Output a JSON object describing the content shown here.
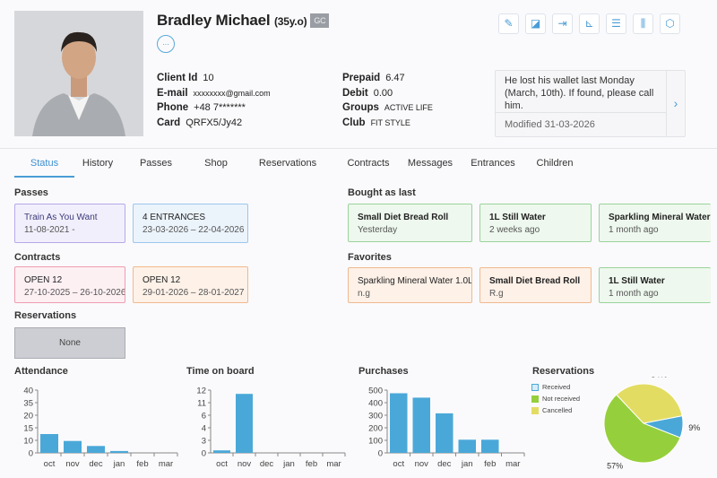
{
  "client": {
    "name": "Bradley Michael",
    "age": "(35y.o)",
    "badge": "GC",
    "more": "...",
    "fields_left": [
      {
        "label": "Client Id",
        "value": "10"
      },
      {
        "label": "E-mail",
        "value": "xxxxxxxx@gmail.com"
      },
      {
        "label": "Phone",
        "value": "+48 7*******"
      },
      {
        "label": "Card",
        "value": "QRFX5/Jy42"
      }
    ],
    "fields_right": [
      {
        "label": "Prepaid",
        "value": "6.47"
      },
      {
        "label": "Debit",
        "value": "0.00"
      },
      {
        "label": "Groups",
        "value": "ACTIVE LIFE"
      },
      {
        "label": "Club",
        "value": "FIT STYLE"
      }
    ]
  },
  "toolbar": [
    "edit-icon",
    "card-icon",
    "login-icon",
    "cart-icon",
    "receipt-icon",
    "dumbbell-icon",
    "settings-icon"
  ],
  "note": {
    "text": "He lost his wallet last Monday (March, 10th). If found, please call him.",
    "modified": "Modified 31-03-2026",
    "arrow": "›"
  },
  "tabs": [
    "Status",
    "History",
    "Passes",
    "Shop",
    "Reservations",
    "Contracts",
    "Messages",
    "Entrances",
    "Children"
  ],
  "sections": {
    "passes": {
      "title": "Passes",
      "items": [
        {
          "title": "Train As You Want",
          "sub": "11-08-2021 -"
        },
        {
          "title": "4 ENTRANCES",
          "sub": "23-03-2026 – 22-04-2026"
        }
      ]
    },
    "contracts": {
      "title": "Contracts",
      "items": [
        {
          "title": "OPEN 12",
          "sub": "27-10-2025 – 26-10-2026"
        },
        {
          "title": "OPEN 12",
          "sub": "29-01-2026 – 28-01-2027"
        }
      ]
    },
    "reservations": {
      "title": "Reservations",
      "value": "None"
    },
    "bought": {
      "title": "Bought as last",
      "items": [
        {
          "title": "Small Diet Bread Roll",
          "sub": "Yesterday"
        },
        {
          "title": "1L Still Water",
          "sub": "2 weeks ago"
        },
        {
          "title": "Sparkling Mineral Water",
          "sub": "1 month ago"
        }
      ]
    },
    "favorites": {
      "title": "Favorites",
      "items": [
        {
          "title": "Sparkling Mineral Water 1.0L",
          "sub": "n.g"
        },
        {
          "title": "Small Diet Bread Roll",
          "sub": "R.g"
        },
        {
          "title": "1L Still Water",
          "sub": "1 month ago"
        }
      ]
    }
  },
  "chart_data": [
    {
      "type": "bar",
      "title": "Attendance",
      "categories": [
        "oct",
        "nov",
        "dec",
        "jan",
        "feb",
        "mar"
      ],
      "values": [
        12.5,
        9.5,
        5.5,
        1.5,
        0,
        0
      ],
      "yticks": [
        0,
        10,
        15,
        20,
        35,
        40
      ],
      "color": "#4aa8d8"
    },
    {
      "type": "bar",
      "title": "Time on board",
      "categories": [
        "oct",
        "nov",
        "dec",
        "jan",
        "feb",
        "mar"
      ],
      "values": [
        0.6,
        11.7,
        0,
        0,
        0,
        0
      ],
      "yticks": [
        0,
        3,
        4,
        6,
        11,
        12
      ],
      "color": "#4aa8d8"
    },
    {
      "type": "bar",
      "title": "Purchases",
      "categories": [
        "oct",
        "nov",
        "dec",
        "jan",
        "feb",
        "mar"
      ],
      "values": [
        475,
        440,
        315,
        105,
        105,
        0
      ],
      "yticks": [
        0,
        100,
        200,
        300,
        400,
        500
      ],
      "color": "#4aa8d8"
    },
    {
      "type": "pie",
      "title": "Reservations",
      "legend": "top-left",
      "slices": [
        {
          "name": "Received",
          "value": 9,
          "label": "9%",
          "color": "#4aa8d8"
        },
        {
          "name": "Not received",
          "value": 57,
          "label": "57%",
          "color": "#96cf3c"
        },
        {
          "name": "Cancelled",
          "value": 34,
          "label": "34%",
          "color": "#e3dc62"
        }
      ]
    }
  ]
}
